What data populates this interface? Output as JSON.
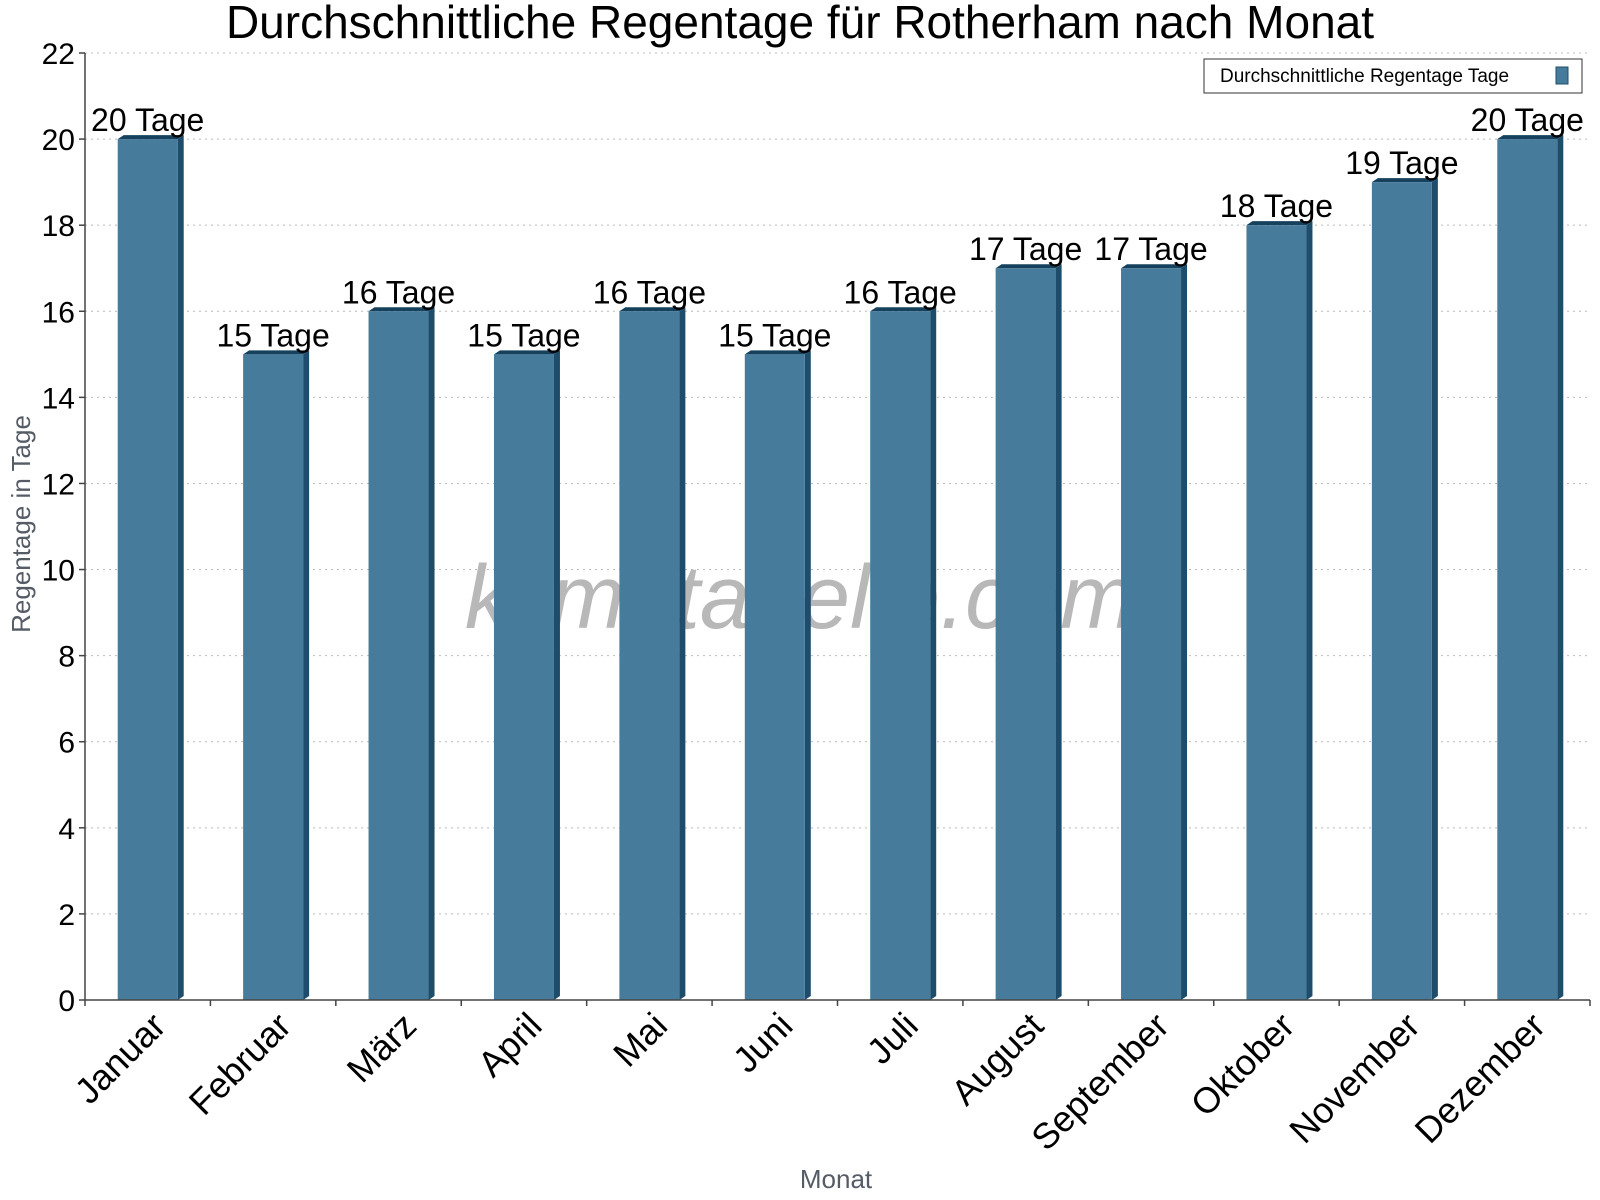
{
  "chart_data": {
    "type": "bar",
    "title": "Durchschnittliche Regentage für Rotherham nach Monat",
    "xlabel": "Monat",
    "ylabel": "Regentage in Tage",
    "ylim": [
      0,
      22
    ],
    "yticks": [
      0,
      2,
      4,
      6,
      8,
      10,
      12,
      14,
      16,
      18,
      20,
      22
    ],
    "grid": true,
    "legend_position": "top-right",
    "categories": [
      "Januar",
      "Februar",
      "März",
      "April",
      "Mai",
      "Juni",
      "Juli",
      "August",
      "September",
      "Oktober",
      "November",
      "Dezember"
    ],
    "series": [
      {
        "name": "Durchschnittliche Regentage Tage",
        "values": [
          20,
          15,
          16,
          15,
          16,
          15,
          16,
          17,
          17,
          18,
          19,
          20
        ],
        "data_labels": [
          "20 Tage",
          "15 Tage",
          "16 Tage",
          "15 Tage",
          "16 Tage",
          "15 Tage",
          "16 Tage",
          "17 Tage",
          "17 Tage",
          "18 Tage",
          "19 Tage",
          "20 Tage"
        ],
        "color": "#467b9c",
        "side_color": "#1d4d6b",
        "top_color": "#16415c"
      }
    ],
    "watermark": "klimatabelle.com"
  }
}
